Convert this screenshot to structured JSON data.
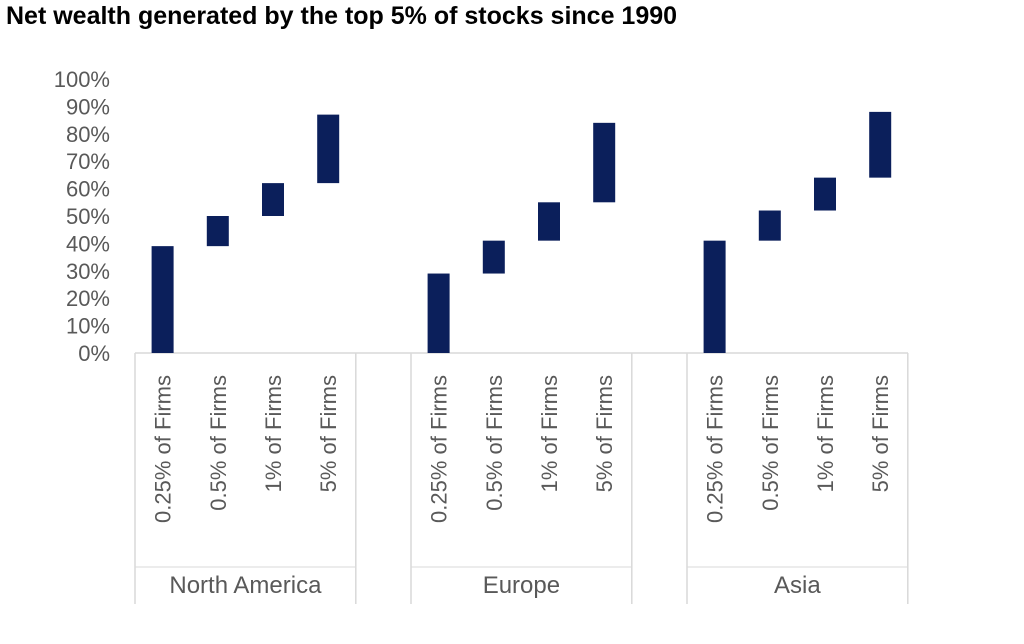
{
  "chart_data": {
    "type": "bar",
    "subtype": "floating-waterfall",
    "title": "Net wealth generated by the top 5% of stocks since 1990",
    "xlabel": "",
    "ylabel": "",
    "ylim": [
      0,
      100
    ],
    "yticks": [
      "0%",
      "10%",
      "20%",
      "30%",
      "40%",
      "50%",
      "60%",
      "70%",
      "80%",
      "90%",
      "100%"
    ],
    "bar_color": "#0b1f5b",
    "axis_color": "#d9d9d9",
    "groups": [
      {
        "name": "North America",
        "categories": [
          "0.25% of Firms",
          "0.5% of Firms",
          "1% of Firms",
          "5% of Firms"
        ],
        "ranges": [
          [
            0,
            39
          ],
          [
            39,
            50
          ],
          [
            50,
            62
          ],
          [
            62,
            87
          ]
        ]
      },
      {
        "name": "Europe",
        "categories": [
          "0.25% of Firms",
          "0.5% of Firms",
          "1% of Firms",
          "5% of Firms"
        ],
        "ranges": [
          [
            0,
            29
          ],
          [
            29,
            41
          ],
          [
            41,
            55
          ],
          [
            55,
            84
          ]
        ]
      },
      {
        "name": "Asia",
        "categories": [
          "0.25% of Firms",
          "0.5% of Firms",
          "1% of Firms",
          "5% of Firms"
        ],
        "ranges": [
          [
            0,
            41
          ],
          [
            41,
            52
          ],
          [
            52,
            64
          ],
          [
            64,
            88
          ]
        ]
      }
    ]
  }
}
